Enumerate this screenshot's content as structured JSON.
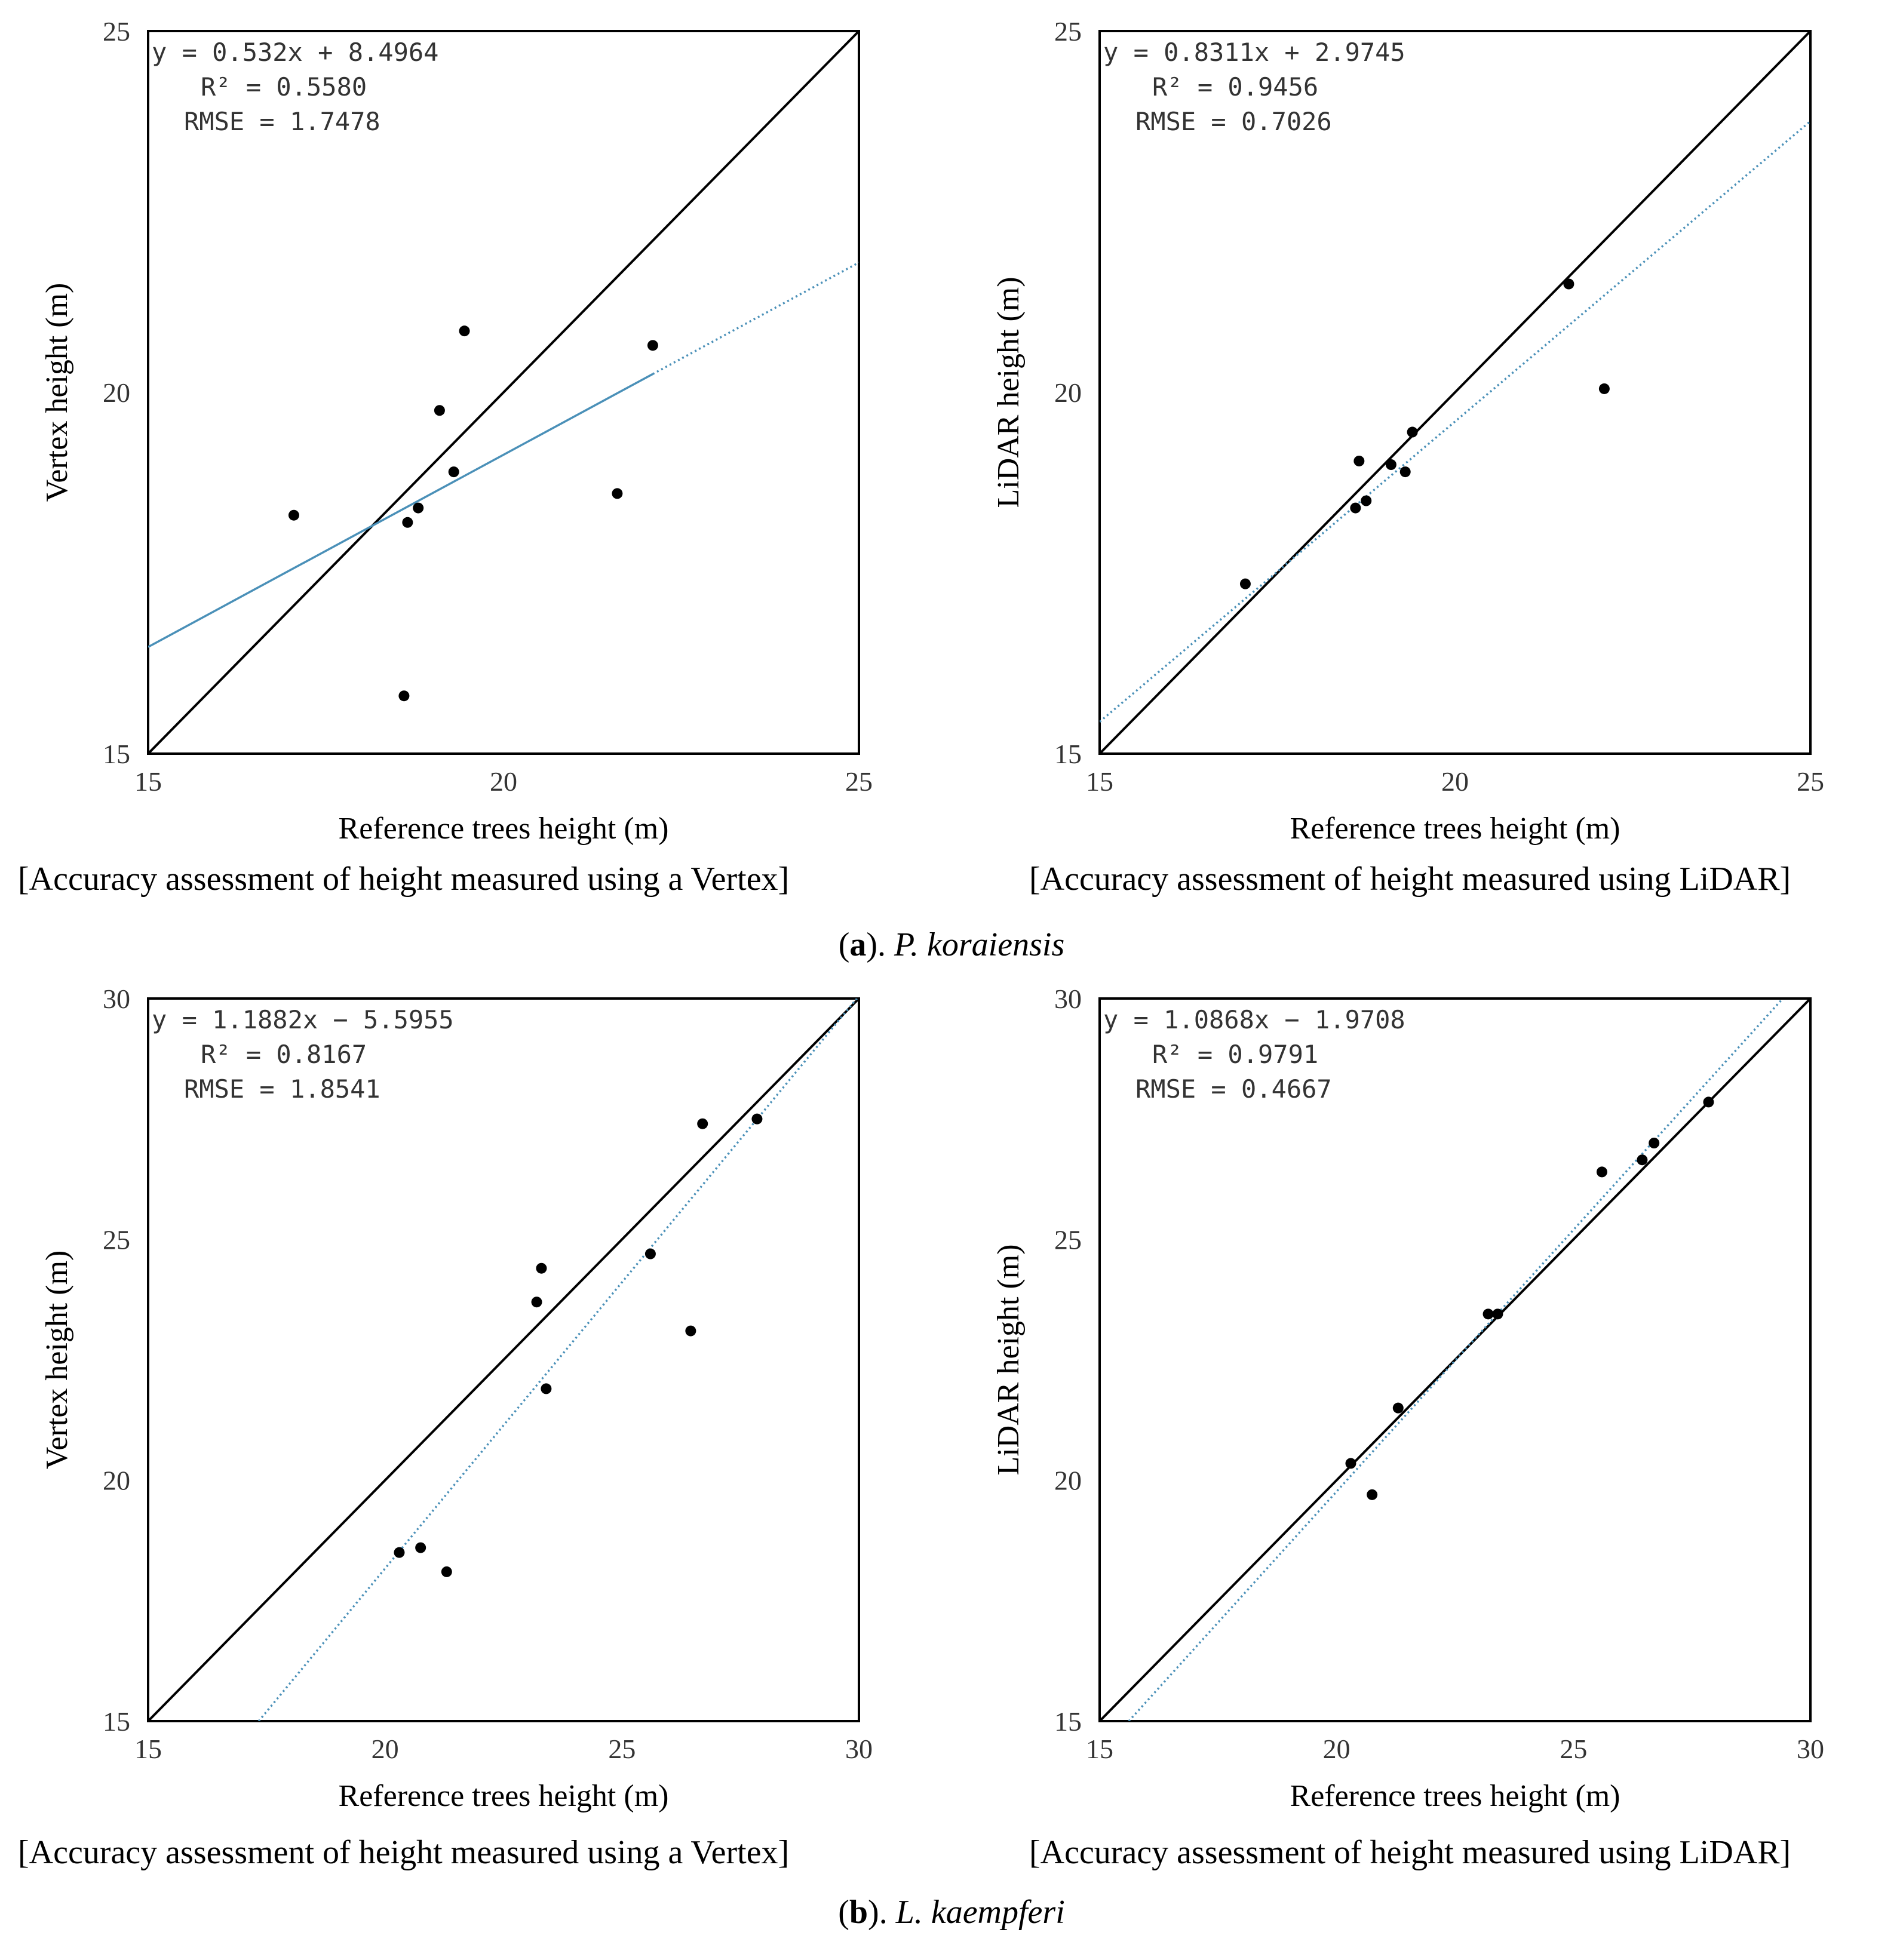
{
  "colors": {
    "identity_line": "#000000",
    "fit_line": "#4a90b8",
    "point": "#000000"
  },
  "sections": [
    {
      "label": "a",
      "species": "P. koraiensis"
    },
    {
      "label": "b",
      "species": "L. kaempferi"
    }
  ],
  "chart_data": [
    {
      "type": "scatter",
      "id": "a-vertex",
      "caption": "[Accuracy assessment of height measured using a Vertex]",
      "xlabel": "Reference trees height (m)",
      "ylabel": "Vertex height (m)",
      "xlim": [
        15,
        25
      ],
      "ylim": [
        15,
        25
      ],
      "xticks": [
        15,
        20,
        25
      ],
      "yticks": [
        15,
        20,
        25
      ],
      "equation": "y = 0.532x + 8.4964",
      "r2": "R² = 0.5580",
      "rmse": "RMSE = 1.7478",
      "fit": {
        "slope": 0.532,
        "intercept": 8.4964,
        "style": "solid-then-dotted"
      },
      "points": [
        {
          "x": 17.05,
          "y": 18.3
        },
        {
          "x": 18.65,
          "y": 18.2
        },
        {
          "x": 18.8,
          "y": 18.4
        },
        {
          "x": 19.1,
          "y": 19.75
        },
        {
          "x": 19.3,
          "y": 18.9
        },
        {
          "x": 19.45,
          "y": 20.85
        },
        {
          "x": 18.6,
          "y": 15.8
        },
        {
          "x": 21.6,
          "y": 18.6
        },
        {
          "x": 22.1,
          "y": 20.65
        }
      ]
    },
    {
      "type": "scatter",
      "id": "a-lidar",
      "caption": "[Accuracy assessment of height measured using LiDAR]",
      "xlabel": "Reference trees height (m)",
      "ylabel": "LiDAR height (m)",
      "xlim": [
        15,
        25
      ],
      "ylim": [
        15,
        25
      ],
      "xticks": [
        15,
        20,
        25
      ],
      "yticks": [
        15,
        20,
        25
      ],
      "equation": "y = 0.8311x + 2.9745",
      "r2": "R² = 0.9456",
      "rmse": "RMSE = 0.7026",
      "fit": {
        "slope": 0.8311,
        "intercept": 2.9745,
        "style": "dotted"
      },
      "points": [
        {
          "x": 17.05,
          "y": 17.35
        },
        {
          "x": 18.6,
          "y": 18.4
        },
        {
          "x": 18.75,
          "y": 18.5
        },
        {
          "x": 18.65,
          "y": 19.05
        },
        {
          "x": 19.1,
          "y": 19.0
        },
        {
          "x": 19.3,
          "y": 18.9
        },
        {
          "x": 19.4,
          "y": 19.45
        },
        {
          "x": 21.6,
          "y": 21.5
        },
        {
          "x": 22.1,
          "y": 20.05
        }
      ]
    },
    {
      "type": "scatter",
      "id": "b-vertex",
      "caption": "[Accuracy assessment of height measured using a Vertex]",
      "xlabel": "Reference trees height (m)",
      "ylabel": "Vertex height (m)",
      "xlim": [
        15,
        30
      ],
      "ylim": [
        15,
        30
      ],
      "xticks": [
        15,
        20,
        25,
        30
      ],
      "yticks": [
        15,
        20,
        25,
        30
      ],
      "equation": "y = 1.1882x − 5.5955",
      "r2": "R² = 0.8167",
      "rmse": "RMSE = 1.8541",
      "fit": {
        "slope": 1.1882,
        "intercept": -5.5955,
        "style": "dotted"
      },
      "points": [
        {
          "x": 20.3,
          "y": 18.5
        },
        {
          "x": 20.75,
          "y": 18.6
        },
        {
          "x": 21.3,
          "y": 18.1
        },
        {
          "x": 23.2,
          "y": 23.7
        },
        {
          "x": 23.3,
          "y": 24.4
        },
        {
          "x": 23.4,
          "y": 21.9
        },
        {
          "x": 25.6,
          "y": 24.7
        },
        {
          "x": 26.45,
          "y": 23.1
        },
        {
          "x": 26.7,
          "y": 27.4
        },
        {
          "x": 27.85,
          "y": 27.5
        }
      ]
    },
    {
      "type": "scatter",
      "id": "b-lidar",
      "caption": "[Accuracy assessment of height measured using LiDAR]",
      "xlabel": "Reference trees height (m)",
      "ylabel": "LiDAR height (m)",
      "xlim": [
        15,
        30
      ],
      "ylim": [
        15,
        30
      ],
      "xticks": [
        15,
        20,
        25,
        30
      ],
      "yticks": [
        15,
        20,
        25,
        30
      ],
      "equation": "y = 1.0868x − 1.9708",
      "r2": "R² = 0.9791",
      "rmse": "RMSE = 0.4667",
      "fit": {
        "slope": 1.0868,
        "intercept": -1.9708,
        "style": "dotted"
      },
      "points": [
        {
          "x": 20.3,
          "y": 20.35
        },
        {
          "x": 20.75,
          "y": 19.7
        },
        {
          "x": 21.3,
          "y": 21.5
        },
        {
          "x": 23.2,
          "y": 23.45
        },
        {
          "x": 23.4,
          "y": 23.45
        },
        {
          "x": 25.6,
          "y": 26.4
        },
        {
          "x": 26.45,
          "y": 26.65
        },
        {
          "x": 26.7,
          "y": 27.0
        },
        {
          "x": 27.85,
          "y": 27.85
        }
      ]
    }
  ]
}
